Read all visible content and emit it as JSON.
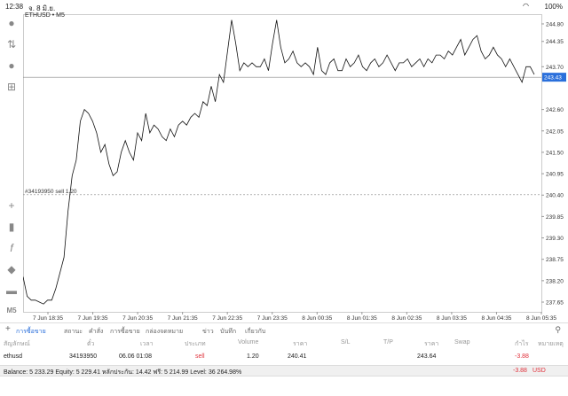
{
  "status_bar": {
    "time": "12:38",
    "date": "จ. 8 มิ.ย.",
    "wifi": "wifi-icon",
    "battery": "100%"
  },
  "chart_header": {
    "symbol_label": "ETHUSD • M5"
  },
  "chart_data": {
    "type": "line",
    "title": "",
    "x_ticks": [
      "7 Jun 18:35",
      "7 Jun 19:35",
      "7 Jun 20:35",
      "7 Jun 21:35",
      "7 Jun 22:35",
      "7 Jun 23:35",
      "8 Jun 00:35",
      "8 Jun 01:35",
      "8 Jun 02:35",
      "8 Jun 03:35",
      "8 Jun 04:35",
      "8 Jun 05:35"
    ],
    "y_ticks": [
      244.8,
      244.35,
      243.7,
      243.43,
      242.6,
      242.05,
      241.5,
      240.95,
      240.4,
      239.85,
      239.3,
      238.75,
      238.2,
      237.65
    ],
    "ylim": [
      237.4,
      245.05
    ],
    "current_price": 243.43,
    "current_price_color": "#2a6fdb",
    "order_line": {
      "label": "#34193950 sell 1.20",
      "price": 240.41
    },
    "series": [
      {
        "values": [
          238.3,
          237.8,
          237.7,
          237.7,
          237.65,
          237.6,
          237.7,
          237.7,
          238.0,
          238.4,
          238.8,
          240.0,
          240.9,
          241.3,
          242.3,
          242.6,
          242.5,
          242.3,
          242.0,
          241.5,
          241.7,
          241.2,
          240.9,
          241.0,
          241.5,
          241.8,
          241.5,
          241.3,
          242.0,
          241.8,
          242.5,
          242.0,
          242.2,
          242.1,
          241.9,
          241.8,
          242.1,
          241.9,
          242.2,
          242.3,
          242.2,
          242.4,
          242.5,
          242.4,
          242.8,
          242.7,
          243.2,
          242.8,
          243.5,
          243.3,
          244.1,
          244.9,
          244.3,
          243.6,
          243.8,
          243.7,
          243.8,
          243.7,
          243.7,
          243.9,
          243.6,
          244.3,
          244.9,
          244.2,
          243.8,
          243.9,
          244.1,
          243.8,
          243.7,
          243.8,
          243.7,
          243.5,
          244.2,
          243.6,
          243.5,
          243.8,
          243.9,
          243.6,
          243.6,
          243.9,
          243.7,
          243.8,
          244.0,
          243.7,
          243.6,
          243.8,
          243.9,
          243.7,
          243.8,
          244.0,
          243.8,
          243.6,
          243.8,
          243.8,
          243.9,
          243.7,
          243.8,
          243.9,
          243.7,
          243.9,
          243.8,
          244.0,
          244.0,
          243.9,
          244.1,
          244.0,
          244.2,
          244.4,
          244.0,
          244.2,
          244.4,
          244.5,
          244.1,
          243.9,
          244.0,
          244.2,
          244.0,
          243.9,
          243.7,
          243.9,
          243.7,
          243.5,
          243.3,
          243.7,
          243.7,
          243.5
        ]
      }
    ]
  },
  "sidebar": {
    "icons": [
      "user-icon",
      "deal-icon",
      "chat-icon",
      "add-order-icon",
      "crosshair-icon",
      "candles-icon",
      "function-icon",
      "objects-icon",
      "chart-type-icon"
    ],
    "timeframe": "M5"
  },
  "tabs": [
    "การซื้อขาย",
    "สถานะ",
    "คำสั่ง",
    "การซื้อขาย",
    "กล่องจดหมาย",
    "ข่าว",
    "บันทึก",
    "เกี่ยวกับ"
  ],
  "table": {
    "headers": [
      "สัญลักษณ์",
      "ตั๋ว",
      "เวลา",
      "ประเภท",
      "Volume",
      "ราคา",
      "S/L",
      "T/P",
      "ราคา",
      "Swap",
      "กำไร",
      "หมายเหตุ"
    ],
    "row": {
      "symbol": "ethusd",
      "ticket": "34193950",
      "time": "06.06 01:08",
      "type": "sell",
      "volume": "1.20",
      "price": "240.41",
      "sl": "",
      "tp": "",
      "current_price": "243.64",
      "swap": "",
      "profit": "-3.88",
      "comment": ""
    }
  },
  "balance_bar": {
    "text": "Balance: 5 233.29 Equity: 5 229.41 หลักประกัน: 14.42 ฟรี: 5 214.99 Level: 36 264.98%",
    "total_profit": "-3.88",
    "currency": "USD"
  }
}
